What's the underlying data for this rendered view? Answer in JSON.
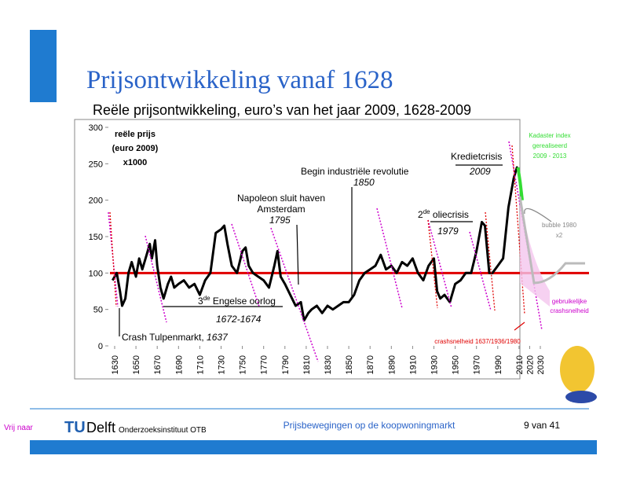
{
  "slide": {
    "title": "Prijsontwikkeling vanaf 1628",
    "subtitle": "Reële prijsontwikkeling, euro’s van het jaar 2009, 1628-2009",
    "footer": {
      "credit": "Vrij naar",
      "logo_tu": "TU",
      "logo_delft": "Delft",
      "institute": "Onderzoeksinstituut OTB",
      "topic": "Prijsbewegingen op de koopwoningmarkt",
      "page": "9 van 41"
    }
  },
  "chart_data": {
    "type": "line",
    "y_label": [
      "reële prijs",
      "(euro 2009)",
      "x1000"
    ],
    "xlim": [
      1630,
      2030
    ],
    "xticks": [
      1630,
      1650,
      1670,
      1690,
      1710,
      1730,
      1750,
      1770,
      1790,
      1810,
      1830,
      1850,
      1870,
      1890,
      1910,
      1930,
      1950,
      1970,
      1990,
      2010,
      2020,
      2030
    ],
    "ylim": [
      0,
      300
    ],
    "yticks": [
      0,
      50,
      100,
      150,
      200,
      250,
      300
    ],
    "reference_line": {
      "value": 100,
      "color": "#e00000"
    },
    "series": [
      {
        "name": "reële prijs",
        "color": "#000000",
        "x": [
          1628,
          1632,
          1635,
          1637,
          1640,
          1643,
          1646,
          1650,
          1653,
          1656,
          1660,
          1663,
          1665,
          1668,
          1670,
          1673,
          1676,
          1680,
          1683,
          1686,
          1690,
          1695,
          1700,
          1705,
          1710,
          1715,
          1720,
          1725,
          1730,
          1733,
          1736,
          1740,
          1745,
          1750,
          1753,
          1756,
          1760,
          1765,
          1770,
          1775,
          1780,
          1783,
          1786,
          1790,
          1795,
          1800,
          1805,
          1808,
          1812,
          1815,
          1820,
          1825,
          1830,
          1835,
          1840,
          1845,
          1850,
          1855,
          1860,
          1865,
          1870,
          1875,
          1880,
          1885,
          1890,
          1895,
          1900,
          1905,
          1910,
          1915,
          1920,
          1925,
          1930,
          1933,
          1936,
          1940,
          1945,
          1950,
          1955,
          1960,
          1965,
          1970,
          1975,
          1978,
          1982,
          1985,
          1990,
          1995,
          2000,
          2005,
          2008,
          2009
        ],
        "values": [
          90,
          100,
          75,
          55,
          65,
          100,
          115,
          95,
          120,
          105,
          125,
          140,
          120,
          145,
          110,
          80,
          65,
          85,
          95,
          80,
          85,
          90,
          80,
          85,
          70,
          90,
          100,
          155,
          160,
          165,
          140,
          110,
          100,
          130,
          135,
          110,
          100,
          95,
          90,
          80,
          110,
          130,
          95,
          85,
          70,
          55,
          60,
          35,
          45,
          50,
          55,
          45,
          55,
          50,
          55,
          60,
          60,
          70,
          90,
          100,
          105,
          110,
          125,
          105,
          110,
          100,
          115,
          110,
          120,
          100,
          90,
          110,
          120,
          75,
          65,
          70,
          60,
          85,
          90,
          100,
          100,
          130,
          170,
          165,
          100,
          100,
          110,
          120,
          190,
          230,
          245,
          240
        ]
      },
      {
        "name": "Kadaster index gerealiseerd 2009 - 2013",
        "color": "#33dd33",
        "x": [
          2009,
          2011,
          2013
        ],
        "values": [
          245,
          225,
          200
        ]
      }
    ],
    "annotations": {
      "crash": "Crash Tulpenmarkt, ",
      "crash_year": "1637",
      "war_pre": "3",
      "war_sup": "de",
      "war_post": " Engelse oorlog",
      "war_years": "1672-1674",
      "napoleon1": "Napoleon sluit haven",
      "napoleon2": "Amsterdam",
      "napoleon_year": "1795",
      "industry": "Begin industriële revolutie",
      "industry_year": "1850",
      "oil_pre": "2",
      "oil_sup": "de",
      "oil_post": " oliecrisis",
      "oil_year": "1979",
      "credit": "Kredietcrisis",
      "credit_year": "2009",
      "kadaster1": "Kadaster index",
      "kadaster2": "gerealiseerd",
      "kadaster3": "2009 - 2013",
      "bubble1": "bubble 1980",
      "bubble2": "x2",
      "usual1": "gebruikelijke",
      "usual2": "crashsnelheid",
      "speed": "crashsnelheid 1637/1936/1980"
    }
  }
}
